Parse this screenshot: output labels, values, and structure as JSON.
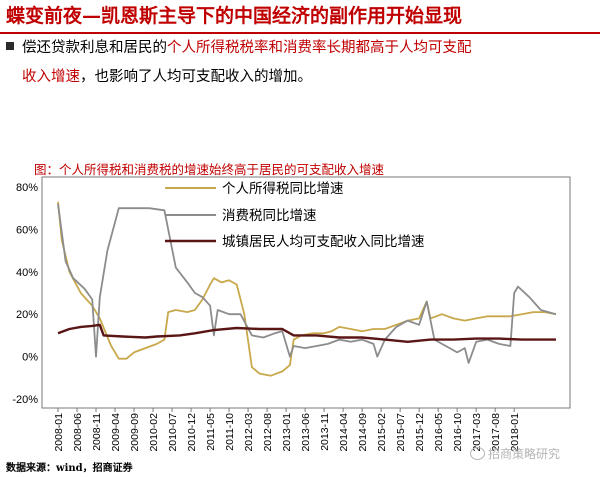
{
  "header": {
    "title": "蝶变前夜—凯恩斯主导下的中国经济的副作用开始显现"
  },
  "bullet": {
    "seg1": "偿还贷款利息和居民的",
    "seg2": "个人所得税税率和消费率长期都高于人均可支配",
    "seg3": "收入增速",
    "seg4": "，也影响了人均可支配收入的增加。"
  },
  "figure": {
    "caption": "图：个人所得税和消费税的增速始终高于居民的可支配收入增速"
  },
  "footer": {
    "source": "数据来源：wind，招商证券",
    "watermark": "招商策略研究"
  },
  "colors": {
    "accent": "#c00000",
    "income_tax": "#c8a84a",
    "consumption_tax": "#8c8c8c",
    "disposable_income": "#5a1515"
  },
  "chart_data": {
    "type": "line",
    "x_start": "2008-01",
    "x_end": "2018-12",
    "x_ticks": [
      "2008-01",
      "2008-06",
      "2008-11",
      "2009-04",
      "2009-09",
      "2010-02",
      "2010-07",
      "2010-12",
      "2011-05",
      "2011-10",
      "2012-03",
      "2012-08",
      "2013-01",
      "2013-06",
      "2013-11",
      "2014-04",
      "2014-09",
      "2015-02",
      "2015-07",
      "2015-12",
      "2016-05",
      "2016-10",
      "2017-03",
      "2017-08",
      "2018-01"
    ],
    "y_ticks": [
      "80%",
      "60%",
      "40%",
      "20%",
      "0%",
      "-20%"
    ],
    "ylim": [
      -20,
      80
    ],
    "grid": false,
    "legend_position": "top-right",
    "series": [
      {
        "name": "个人所得税同比增速",
        "color": "#c8a84a",
        "points": [
          [
            "2008-01",
            73
          ],
          [
            "2008-02",
            55
          ],
          [
            "2008-04",
            40
          ],
          [
            "2008-07",
            30
          ],
          [
            "2008-10",
            24
          ],
          [
            "2008-12",
            18
          ],
          [
            "2009-03",
            5
          ],
          [
            "2009-05",
            -1
          ],
          [
            "2009-07",
            -1
          ],
          [
            "2009-09",
            2
          ],
          [
            "2009-12",
            4
          ],
          [
            "2010-03",
            6
          ],
          [
            "2010-05",
            8
          ],
          [
            "2010-06",
            21
          ],
          [
            "2010-08",
            22
          ],
          [
            "2010-11",
            21
          ],
          [
            "2011-01",
            22
          ],
          [
            "2011-03",
            27
          ],
          [
            "2011-05",
            34
          ],
          [
            "2011-06",
            37
          ],
          [
            "2011-08",
            35
          ],
          [
            "2011-10",
            36
          ],
          [
            "2011-12",
            34
          ],
          [
            "2012-02",
            20
          ],
          [
            "2012-04",
            -5
          ],
          [
            "2012-06",
            -8
          ],
          [
            "2012-09",
            -9
          ],
          [
            "2012-12",
            -7
          ],
          [
            "2013-02",
            -4
          ],
          [
            "2013-03",
            8
          ],
          [
            "2013-05",
            10
          ],
          [
            "2013-08",
            11
          ],
          [
            "2013-11",
            11
          ],
          [
            "2014-01",
            12
          ],
          [
            "2014-03",
            14
          ],
          [
            "2014-06",
            13
          ],
          [
            "2014-09",
            12
          ],
          [
            "2014-12",
            13
          ],
          [
            "2015-03",
            13
          ],
          [
            "2015-06",
            15
          ],
          [
            "2015-09",
            17
          ],
          [
            "2015-12",
            18
          ],
          [
            "2016-02",
            26
          ],
          [
            "2016-03",
            18
          ],
          [
            "2016-06",
            20
          ],
          [
            "2016-09",
            18
          ],
          [
            "2016-12",
            17
          ],
          [
            "2017-03",
            18
          ],
          [
            "2017-06",
            19
          ],
          [
            "2017-09",
            19
          ],
          [
            "2017-12",
            19
          ],
          [
            "2018-03",
            20
          ],
          [
            "2018-06",
            21
          ],
          [
            "2018-09",
            21
          ],
          [
            "2018-12",
            20
          ]
        ]
      },
      {
        "name": "消费税同比增速",
        "color": "#8c8c8c",
        "points": [
          [
            "2008-01",
            72
          ],
          [
            "2008-03",
            45
          ],
          [
            "2008-05",
            37
          ],
          [
            "2008-08",
            32
          ],
          [
            "2008-10",
            27
          ],
          [
            "2008-11",
            0
          ],
          [
            "2008-12",
            28
          ],
          [
            "2009-02",
            50
          ],
          [
            "2009-05",
            70
          ],
          [
            "2009-08",
            70
          ],
          [
            "2010-01",
            70
          ],
          [
            "2010-05",
            69
          ],
          [
            "2010-08",
            42
          ],
          [
            "2010-11",
            35
          ],
          [
            "2011-01",
            30
          ],
          [
            "2011-03",
            28
          ],
          [
            "2011-05",
            24
          ],
          [
            "2011-06",
            10
          ],
          [
            "2011-07",
            22
          ],
          [
            "2011-10",
            20
          ],
          [
            "2012-01",
            20
          ],
          [
            "2012-04",
            10
          ],
          [
            "2012-07",
            9
          ],
          [
            "2012-10",
            11
          ],
          [
            "2012-12",
            12
          ],
          [
            "2013-02",
            0
          ],
          [
            "2013-03",
            5
          ],
          [
            "2013-06",
            4
          ],
          [
            "2013-09",
            5
          ],
          [
            "2013-12",
            6
          ],
          [
            "2014-03",
            8
          ],
          [
            "2014-06",
            7
          ],
          [
            "2014-09",
            8
          ],
          [
            "2014-12",
            6
          ],
          [
            "2015-01",
            0
          ],
          [
            "2015-03",
            8
          ],
          [
            "2015-06",
            14
          ],
          [
            "2015-09",
            17
          ],
          [
            "2015-12",
            15
          ],
          [
            "2016-02",
            26
          ],
          [
            "2016-04",
            8
          ],
          [
            "2016-07",
            5
          ],
          [
            "2016-10",
            2
          ],
          [
            "2016-12",
            4
          ],
          [
            "2017-01",
            -3
          ],
          [
            "2017-03",
            7
          ],
          [
            "2017-06",
            8
          ],
          [
            "2017-09",
            6
          ],
          [
            "2017-12",
            5
          ],
          [
            "2018-01",
            30
          ],
          [
            "2018-02",
            33
          ],
          [
            "2018-05",
            28
          ],
          [
            "2018-08",
            22
          ],
          [
            "2018-12",
            20
          ]
        ]
      },
      {
        "name": "城镇居民人均可支配收入同比增速",
        "color": "#5a1515",
        "points": [
          [
            "2008-01",
            11
          ],
          [
            "2008-04",
            13
          ],
          [
            "2008-07",
            14
          ],
          [
            "2008-10",
            14.5
          ],
          [
            "2008-12",
            15
          ],
          [
            "2009-01",
            10
          ],
          [
            "2009-06",
            9.5
          ],
          [
            "2009-12",
            9
          ],
          [
            "2010-03",
            9.5
          ],
          [
            "2010-09",
            10
          ],
          [
            "2011-01",
            11
          ],
          [
            "2011-06",
            12.5
          ],
          [
            "2011-12",
            13.5
          ],
          [
            "2012-06",
            13
          ],
          [
            "2012-12",
            13
          ],
          [
            "2013-03",
            10
          ],
          [
            "2013-09",
            10
          ],
          [
            "2014-03",
            9
          ],
          [
            "2014-09",
            9
          ],
          [
            "2015-03",
            8
          ],
          [
            "2015-09",
            7
          ],
          [
            "2015-12",
            7.5
          ],
          [
            "2016-03",
            8
          ],
          [
            "2016-09",
            8
          ],
          [
            "2017-03",
            8.5
          ],
          [
            "2017-09",
            8.5
          ],
          [
            "2018-03",
            8
          ],
          [
            "2018-09",
            8
          ],
          [
            "2018-12",
            8
          ]
        ]
      }
    ]
  }
}
